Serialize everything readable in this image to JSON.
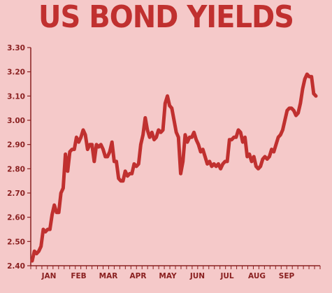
{
  "chart_data": {
    "type": "line",
    "title": "US BOND YIELDS",
    "xlabel": "",
    "ylabel": "",
    "ylim": [
      2.4,
      3.3
    ],
    "yticks": [
      "2.40",
      "2.50",
      "2.60",
      "2.70",
      "2.80",
      "2.90",
      "3.00",
      "3.10",
      "3.20",
      "3.30"
    ],
    "month_labels": [
      "JAN",
      "FEB",
      "MAR",
      "APR",
      "MAY",
      "JUN",
      "JUL",
      "AUG",
      "SEP"
    ],
    "grid": false,
    "legend": "none",
    "line_color": "#c0302f",
    "axis_color": "#8a2020",
    "series": [
      {
        "values": [
          2.42,
          2.46,
          2.45,
          2.46,
          2.48,
          2.55,
          2.54,
          2.55,
          2.55,
          2.61,
          2.65,
          2.62,
          2.62,
          2.7,
          2.72,
          2.86,
          2.79,
          2.87,
          2.88,
          2.88,
          2.93,
          2.91,
          2.93,
          2.96,
          2.94,
          2.88,
          2.9,
          2.9,
          2.83,
          2.9,
          2.89,
          2.9,
          2.88,
          2.85,
          2.85,
          2.87,
          2.91,
          2.83,
          2.83,
          2.76,
          2.75,
          2.75,
          2.79,
          2.77,
          2.78,
          2.78,
          2.82,
          2.81,
          2.82,
          2.9,
          2.94,
          3.01,
          2.96,
          2.93,
          2.95,
          2.92,
          2.93,
          2.96,
          2.95,
          2.96,
          3.07,
          3.1,
          3.06,
          3.05,
          3.0,
          2.95,
          2.93,
          2.78,
          2.83,
          2.94,
          2.91,
          2.93,
          2.93,
          2.95,
          2.92,
          2.9,
          2.87,
          2.88,
          2.85,
          2.82,
          2.83,
          2.81,
          2.82,
          2.81,
          2.82,
          2.8,
          2.82,
          2.83,
          2.83,
          2.92,
          2.92,
          2.93,
          2.93,
          2.96,
          2.95,
          2.91,
          2.93,
          2.85,
          2.86,
          2.83,
          2.85,
          2.81,
          2.8,
          2.81,
          2.84,
          2.85,
          2.84,
          2.85,
          2.88,
          2.87,
          2.9,
          2.93,
          2.94,
          2.96,
          3.0,
          3.04,
          3.05,
          3.05,
          3.04,
          3.02,
          3.03,
          3.07,
          3.13,
          3.17,
          3.19,
          3.18,
          3.18,
          3.11,
          3.1
        ]
      }
    ]
  }
}
